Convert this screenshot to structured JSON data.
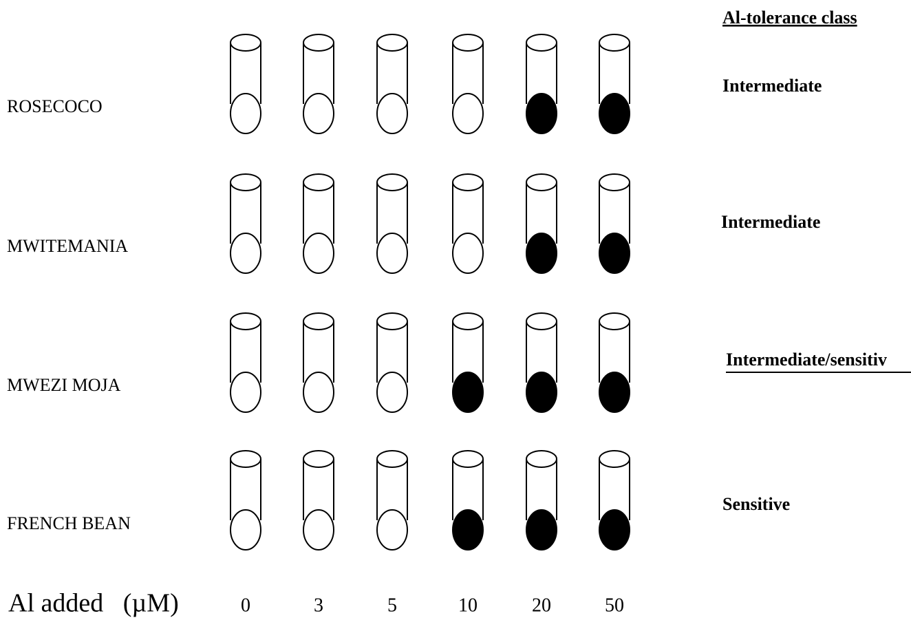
{
  "header": {
    "class_title": "Al-tolerance class"
  },
  "concentration_label": "Al added   (µM)",
  "concentrations": [
    0,
    3,
    5,
    10,
    20,
    50
  ],
  "rows": [
    {
      "label": "ROSECOCO",
      "tolerance_class": "Intermediate",
      "stained": [
        false,
        false,
        false,
        false,
        true,
        true
      ]
    },
    {
      "label": "MWITEMANIA",
      "tolerance_class": "Intermediate",
      "stained": [
        false,
        false,
        false,
        false,
        true,
        true
      ]
    },
    {
      "label": "MWEZI MOJA",
      "tolerance_class": "Intermediate/sensitiv",
      "stained": [
        false,
        false,
        false,
        true,
        true,
        true
      ]
    },
    {
      "label": "FRENCH BEAN",
      "tolerance_class": "Sensitive",
      "stained": [
        false,
        false,
        false,
        true,
        true,
        true
      ]
    }
  ]
}
